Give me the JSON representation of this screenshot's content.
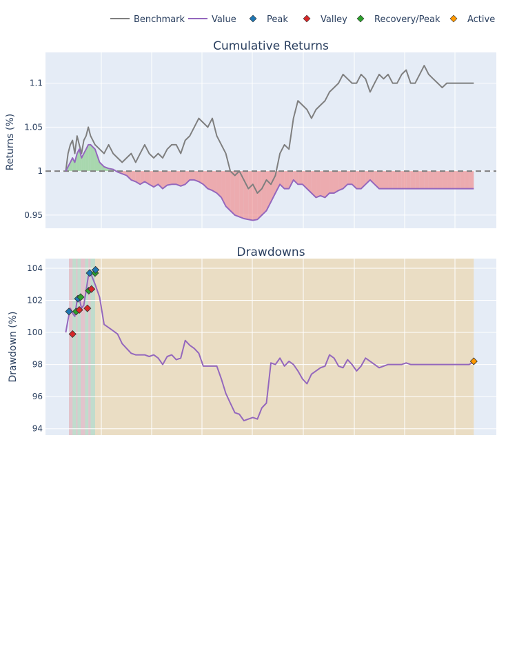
{
  "colors": {
    "benchmark": "#7f7f7f",
    "value": "#9467bd",
    "peak": "#1f77b4",
    "valley": "#d62728",
    "recovery": "#2ca02c",
    "active": "#ff9800",
    "gain_fill": "#7fc97f",
    "loss_fill": "#f08080",
    "plot_bg": "#e5ecf6",
    "grid": "#ffffff",
    "dd_active_band": "#ffa500",
    "dd_recovered_band_peak": "#2ca02c",
    "dd_recovered_band_valley": "#d62728"
  },
  "legend": {
    "position": "top-right",
    "items": [
      {
        "label": "Benchmark",
        "type": "line",
        "color_key": "benchmark"
      },
      {
        "label": "Value",
        "type": "line",
        "color_key": "value"
      },
      {
        "label": "Peak",
        "type": "diamond",
        "color_key": "peak"
      },
      {
        "label": "Valley",
        "type": "diamond",
        "color_key": "valley"
      },
      {
        "label": "Recovery/Peak",
        "type": "diamond",
        "color_key": "recovery"
      },
      {
        "label": "Active",
        "type": "diamond",
        "color_key": "active"
      }
    ]
  },
  "chart_data": [
    {
      "type": "line",
      "title": "Cumulative Returns",
      "xlabel": "",
      "ylabel": "Returns (%)",
      "ylim": [
        0.935,
        1.135
      ],
      "yticks": [
        0.95,
        1,
        1.05,
        1.1
      ],
      "ytick_labels": [
        "0.95",
        "1",
        "1.05",
        "1.1"
      ],
      "xlim": [
        0,
        1000
      ],
      "baseline": 1,
      "grid": true,
      "series": [
        {
          "name": "Benchmark",
          "color_key": "benchmark",
          "x": [
            45,
            50,
            55,
            60,
            65,
            70,
            75,
            80,
            85,
            90,
            95,
            100,
            110,
            120,
            130,
            140,
            150,
            160,
            170,
            180,
            190,
            200,
            210,
            220,
            230,
            240,
            250,
            260,
            270,
            280,
            290,
            300,
            310,
            320,
            330,
            340,
            350,
            360,
            370,
            380,
            390,
            400,
            410,
            420,
            430,
            440,
            450,
            460,
            470,
            480,
            490,
            500,
            510,
            520,
            530,
            540,
            550,
            560,
            570,
            580,
            590,
            600,
            610,
            620,
            630,
            640,
            650,
            660,
            670,
            680,
            690,
            700,
            710,
            720,
            730,
            740,
            750,
            760,
            770,
            780,
            790,
            800,
            810,
            820,
            830,
            840,
            850,
            860,
            870,
            880,
            890,
            900,
            910,
            920,
            930,
            940,
            950
          ],
          "values": [
            1.0,
            1.02,
            1.03,
            1.035,
            1.02,
            1.04,
            1.03,
            1.02,
            1.035,
            1.04,
            1.05,
            1.04,
            1.03,
            1.025,
            1.02,
            1.03,
            1.02,
            1.015,
            1.01,
            1.015,
            1.02,
            1.01,
            1.02,
            1.03,
            1.02,
            1.015,
            1.02,
            1.015,
            1.025,
            1.03,
            1.03,
            1.02,
            1.035,
            1.04,
            1.05,
            1.06,
            1.055,
            1.05,
            1.06,
            1.04,
            1.03,
            1.02,
            1.0,
            0.995,
            1.0,
            0.99,
            0.98,
            0.985,
            0.975,
            0.98,
            0.99,
            0.985,
            0.995,
            1.02,
            1.03,
            1.025,
            1.06,
            1.08,
            1.075,
            1.07,
            1.06,
            1.07,
            1.075,
            1.08,
            1.09,
            1.095,
            1.1,
            1.11,
            1.105,
            1.1,
            1.1,
            1.11,
            1.105,
            1.09,
            1.1,
            1.11,
            1.105,
            1.11,
            1.1,
            1.1,
            1.11,
            1.115,
            1.1,
            1.1,
            1.11,
            1.12,
            1.11,
            1.105,
            1.1,
            1.095,
            1.1,
            1.1,
            1.1,
            1.1,
            1.1,
            1.1,
            1.1
          ]
        },
        {
          "name": "Value",
          "color_key": "value",
          "x": [
            45,
            50,
            55,
            60,
            65,
            70,
            75,
            80,
            85,
            90,
            95,
            100,
            110,
            120,
            130,
            140,
            150,
            160,
            170,
            180,
            190,
            200,
            210,
            220,
            230,
            240,
            250,
            260,
            270,
            280,
            290,
            300,
            310,
            320,
            330,
            340,
            350,
            360,
            370,
            380,
            390,
            400,
            410,
            420,
            430,
            440,
            450,
            460,
            470,
            480,
            490,
            500,
            510,
            520,
            530,
            540,
            550,
            560,
            570,
            580,
            590,
            600,
            610,
            620,
            630,
            640,
            650,
            660,
            670,
            680,
            690,
            700,
            710,
            720,
            730,
            740,
            750,
            760,
            770,
            780,
            790,
            800,
            810,
            820,
            830,
            840,
            850,
            860,
            870,
            880,
            890,
            900,
            910,
            920,
            930,
            940,
            950
          ],
          "values": [
            1.0,
            1.005,
            1.01,
            1.015,
            1.01,
            1.02,
            1.025,
            1.015,
            1.02,
            1.025,
            1.03,
            1.03,
            1.025,
            1.01,
            1.005,
            1.003,
            1.002,
            0.999,
            0.997,
            0.995,
            0.99,
            0.988,
            0.985,
            0.988,
            0.985,
            0.982,
            0.985,
            0.98,
            0.984,
            0.985,
            0.985,
            0.983,
            0.985,
            0.99,
            0.99,
            0.988,
            0.985,
            0.98,
            0.978,
            0.975,
            0.97,
            0.96,
            0.955,
            0.95,
            0.948,
            0.946,
            0.945,
            0.944,
            0.945,
            0.95,
            0.955,
            0.965,
            0.975,
            0.985,
            0.98,
            0.98,
            0.99,
            0.985,
            0.985,
            0.98,
            0.975,
            0.97,
            0.972,
            0.97,
            0.975,
            0.975,
            0.978,
            0.98,
            0.985,
            0.985,
            0.98,
            0.98,
            0.985,
            0.99,
            0.985,
            0.98,
            0.98,
            0.98,
            0.98,
            0.98,
            0.98,
            0.98,
            0.98,
            0.98,
            0.98,
            0.98,
            0.98,
            0.98,
            0.98,
            0.98,
            0.98,
            0.98,
            0.98,
            0.98,
            0.98,
            0.98,
            0.98
          ]
        }
      ]
    },
    {
      "type": "line",
      "title": "Drawdowns",
      "xlabel": "",
      "ylabel": "Drawdown (%)",
      "ylim": [
        93.6,
        104.6
      ],
      "yticks": [
        94,
        96,
        98,
        100,
        102,
        104
      ],
      "ytick_labels": [
        "94",
        "96",
        "98",
        "100",
        "102",
        "104"
      ],
      "xlim": [
        0,
        1000
      ],
      "grid": true,
      "series": [
        {
          "name": "Value",
          "color_key": "value",
          "x": [
            45,
            50,
            55,
            60,
            65,
            70,
            75,
            80,
            85,
            90,
            95,
            100,
            110,
            120,
            130,
            140,
            150,
            160,
            170,
            180,
            190,
            200,
            210,
            220,
            230,
            240,
            250,
            260,
            270,
            280,
            290,
            300,
            310,
            320,
            330,
            340,
            350,
            360,
            370,
            380,
            390,
            400,
            410,
            420,
            430,
            440,
            450,
            460,
            470,
            480,
            490,
            500,
            510,
            520,
            530,
            540,
            550,
            560,
            570,
            580,
            590,
            600,
            610,
            620,
            630,
            640,
            650,
            660,
            670,
            680,
            690,
            700,
            710,
            720,
            730,
            740,
            750,
            760,
            770,
            780,
            790,
            800,
            810,
            820,
            830,
            840,
            850,
            860,
            870,
            880,
            890,
            900,
            910,
            920,
            930,
            940,
            950
          ],
          "values": [
            100.0,
            100.8,
            101.5,
            101.2,
            101.0,
            102.0,
            102.1,
            101.5,
            101.7,
            102.6,
            103.5,
            103.7,
            103.0,
            102.2,
            100.5,
            100.3,
            100.1,
            99.9,
            99.3,
            99.0,
            98.7,
            98.6,
            98.6,
            98.6,
            98.5,
            98.6,
            98.4,
            98.0,
            98.5,
            98.6,
            98.3,
            98.4,
            99.5,
            99.2,
            99.0,
            98.7,
            97.9,
            97.9,
            97.9,
            97.9,
            97.1,
            96.2,
            95.6,
            95.0,
            94.9,
            94.5,
            94.6,
            94.7,
            94.6,
            95.3,
            95.6,
            98.1,
            98.0,
            98.4,
            97.9,
            98.2,
            98.0,
            97.6,
            97.1,
            96.8,
            97.4,
            97.6,
            97.8,
            97.9,
            98.6,
            98.4,
            97.9,
            97.8,
            98.3,
            98.0,
            97.6,
            97.9,
            98.4,
            98.2,
            98.0,
            97.8,
            97.9,
            98.0,
            98.0,
            98.0,
            98.0,
            98.1,
            98.0,
            98.0,
            98.0,
            98.0,
            98.0,
            98.0,
            98.0,
            98.0,
            98.0,
            98.0,
            98.0,
            98.0,
            98.0,
            98.0,
            98.2
          ]
        }
      ],
      "drawdown_bands": [
        {
          "start": 52,
          "valley": 60,
          "end": 68,
          "status": "recovered"
        },
        {
          "start": 68,
          "valley": 71,
          "end": 78,
          "status": "recovered"
        },
        {
          "start": 78,
          "valley": 88,
          "end": 95,
          "status": "recovered"
        },
        {
          "start": 95,
          "valley": 100,
          "end": 110,
          "status": "recovered"
        },
        {
          "start": 110,
          "valley": 110,
          "end": 950,
          "status": "active"
        }
      ],
      "markers": [
        {
          "type": "Peak",
          "x": 52,
          "y": 101.3
        },
        {
          "type": "Valley",
          "x": 60,
          "y": 99.9
        },
        {
          "type": "Recovery/Peak",
          "x": 68,
          "y": 101.3
        },
        {
          "type": "Peak",
          "x": 72,
          "y": 102.1
        },
        {
          "type": "Valley",
          "x": 75,
          "y": 101.4
        },
        {
          "type": "Recovery/Peak",
          "x": 78,
          "y": 102.2
        },
        {
          "type": "Valley",
          "x": 93,
          "y": 101.5
        },
        {
          "type": "Recovery/Peak",
          "x": 96,
          "y": 102.6
        },
        {
          "type": "Peak",
          "x": 98,
          "y": 103.7
        },
        {
          "type": "Valley",
          "x": 102,
          "y": 102.7
        },
        {
          "type": "Recovery/Peak",
          "x": 110,
          "y": 103.7
        },
        {
          "type": "Peak",
          "x": 111,
          "y": 103.9
        },
        {
          "type": "Active",
          "x": 950,
          "y": 98.2
        }
      ]
    }
  ]
}
